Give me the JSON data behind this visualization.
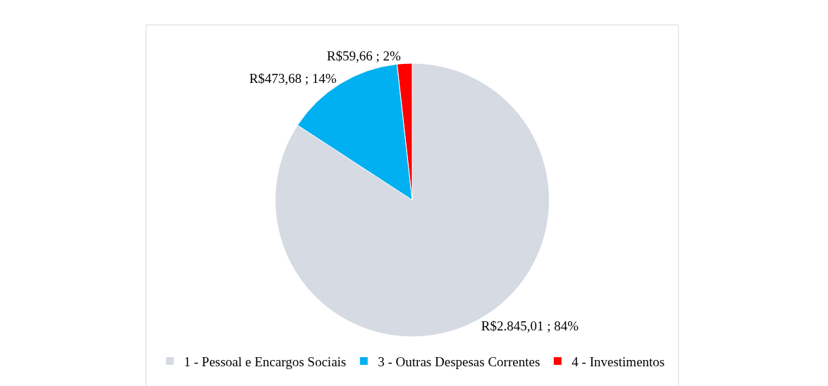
{
  "chart_data": {
    "type": "pie",
    "categories": [
      "1 - Pessoal e Encargos Sociais",
      "3 - Outras Despesas Correntes",
      "4 - Investimentos"
    ],
    "values": [
      2845.01,
      473.68,
      59.66
    ],
    "colors": [
      "#d5dae3",
      "#00b0f0",
      "#ff0000"
    ],
    "value_labels": [
      "R$2.845,01 ; 84%",
      "R$473,68 ; 14%",
      "R$59,66 ; 2%"
    ],
    "legend": "bottom"
  }
}
